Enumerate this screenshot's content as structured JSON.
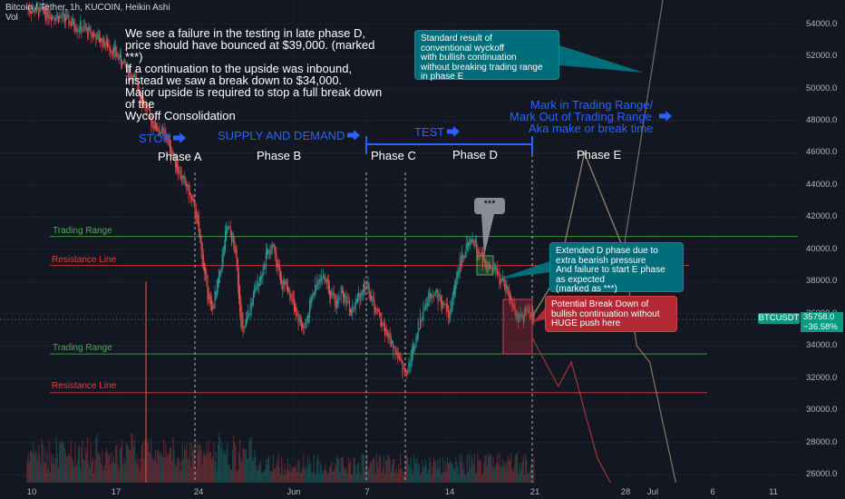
{
  "header": {
    "symbol_line": "Bitcoin / Tether, 1h, KUCOIN, Heikin Ashi",
    "vol_label": "Vol"
  },
  "annotations": {
    "main_note": "We see a failure in the testing in late phase D,\nprice should have bounced at $39,000. (marked\n***)\nIf a continuation to the upside was inbound,\ninstead we saw a break down to $34,000.\nMajor upside is required to stop a full break down\nof the\nWycoff Consolidation",
    "wyckoff_note": "Standard result of\nconventional wyckoff\nwith bullish continuation\nwithout breaking trading range\nin phase E",
    "extended_d_note": "Extended D phase due to\nextra bearish pressure\nAnd failure to start E phase\nas expected\n(marked as ***)",
    "breakdown_note": "Potential Break Down of\nbullish continuation without\nHUGE push here",
    "stars_label": "***",
    "stop_label": "STOP",
    "supply_demand_label": "SUPPLY AND DEMAND",
    "test_label": "TEST",
    "mark_label_1": "Mark in Trading Range/",
    "mark_label_2": "Mark Out of Trading Range",
    "mark_label_3": "Aka make or break time",
    "phases": [
      "Phase A",
      "Phase B",
      "Phase C",
      "Phase D",
      "Phase E"
    ],
    "trading_range_label": "Trading Range",
    "resistance_line_label": "Resistance Line"
  },
  "colors": {
    "background": "#131722",
    "bull": "#26a69a",
    "bear": "#ef5350",
    "trading_range": "#4caf50",
    "resistance": "#f23645",
    "annotation_blue": "#2962ff"
  },
  "price_tag": {
    "symbol": "BTCUSDT",
    "price": "35758.0",
    "change": "−36.58%"
  },
  "chart_data": {
    "type": "candlestick",
    "title": "Bitcoin / Tether, 1h, KUCOIN, Heikin Ashi",
    "ylim": [
      25500,
      55500
    ],
    "y_ticks": [
      "54000.0",
      "52000.0",
      "50000.0",
      "48000.0",
      "46000.0",
      "44000.0",
      "42000.0",
      "40000.0",
      "38000.0",
      "36000.0",
      "34000.0",
      "32000.0",
      "30000.0",
      "28000.0",
      "26000.0"
    ],
    "x_ticks": [
      "10",
      "17",
      "24",
      "Jun",
      "7",
      "14",
      "21",
      "28",
      "Jul",
      "6",
      "11"
    ],
    "levels": [
      {
        "name": "Trading Range",
        "value": 40800
      },
      {
        "name": "Resistance Line",
        "value": 39000
      },
      {
        "name": "Trading Range",
        "value": 33500
      },
      {
        "name": "Resistance Line",
        "value": 31100
      }
    ],
    "price_path": [
      [
        0,
        55000
      ],
      [
        4,
        54500
      ],
      [
        8,
        53500
      ],
      [
        11,
        52500
      ],
      [
        14,
        50500
      ],
      [
        16,
        48000
      ],
      [
        18,
        47000
      ],
      [
        20,
        44500
      ],
      [
        21,
        43500
      ],
      [
        22,
        42000
      ],
      [
        23,
        38500
      ],
      [
        24,
        36000
      ],
      [
        25,
        38500
      ],
      [
        26,
        41500
      ],
      [
        27,
        40000
      ],
      [
        28,
        34500
      ],
      [
        29,
        36500
      ],
      [
        30,
        38000
      ],
      [
        31,
        39500
      ],
      [
        32,
        40200
      ],
      [
        33,
        38000
      ],
      [
        34,
        37500
      ],
      [
        35,
        36000
      ],
      [
        36,
        35000
      ],
      [
        37,
        37000
      ],
      [
        38,
        38500
      ],
      [
        39,
        38000
      ],
      [
        40,
        36500
      ],
      [
        41,
        37500
      ],
      [
        42,
        36000
      ],
      [
        43,
        37000
      ],
      [
        44,
        38000
      ],
      [
        45,
        36500
      ],
      [
        46,
        35500
      ],
      [
        47,
        34500
      ],
      [
        48,
        33500
      ],
      [
        49,
        32200
      ],
      [
        50,
        33500
      ],
      [
        51,
        35500
      ],
      [
        52,
        37000
      ],
      [
        53,
        37500
      ],
      [
        54,
        36500
      ],
      [
        55,
        36000
      ],
      [
        56,
        39000
      ],
      [
        57,
        40000
      ],
      [
        58,
        40500
      ],
      [
        59,
        39500
      ],
      [
        60,
        38800
      ],
      [
        61,
        38500
      ],
      [
        62,
        37800
      ],
      [
        63,
        36800
      ],
      [
        64,
        35500
      ],
      [
        65,
        36200
      ],
      [
        66,
        35800
      ]
    ],
    "projections": [
      {
        "name": "bullish continuation",
        "points": [
          [
            66,
            35800
          ],
          [
            68,
            38500
          ],
          [
            70,
            46000
          ],
          [
            73,
            40000
          ],
          [
            76,
            55500
          ]
        ]
      },
      {
        "name": "failed continuation",
        "points": [
          [
            66,
            35800
          ],
          [
            68,
            38500
          ],
          [
            70,
            46000
          ],
          [
            73,
            40000
          ],
          [
            74,
            34000
          ],
          [
            75,
            33000
          ],
          [
            77,
            25500
          ]
        ]
      },
      {
        "name": "break down",
        "points": [
          [
            66,
            34500
          ],
          [
            68,
            31500
          ],
          [
            69,
            33000
          ],
          [
            71,
            27000
          ],
          [
            72,
            25500
          ]
        ]
      }
    ]
  }
}
